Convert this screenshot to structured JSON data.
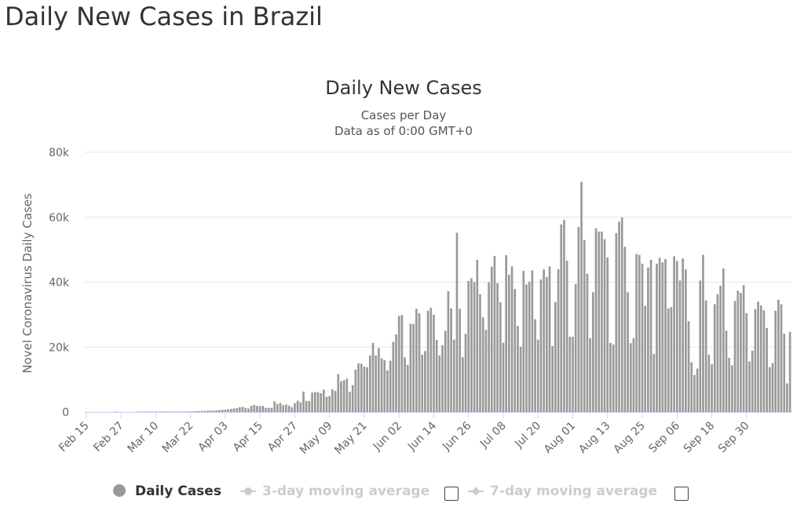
{
  "page": {
    "title": "Daily New Cases in Brazil"
  },
  "legend": {
    "items": [
      {
        "label": "Daily Cases",
        "active": true
      },
      {
        "label": "3-day moving average",
        "active": false
      },
      {
        "label": "7-day moving average",
        "active": false
      }
    ]
  },
  "colors": {
    "bar": "#999999",
    "grid": "#e6e6e6",
    "axis": "#ccd6eb",
    "inactive": "#cccccc"
  },
  "chart_data": {
    "type": "bar",
    "title": "Daily New Cases",
    "subtitle_lines": [
      "Cases per Day",
      "Data as of 0:00 GMT+0"
    ],
    "ylabel": "Novel Coronavirus Daily Cases",
    "xlabel": "",
    "ylim": [
      0,
      80000
    ],
    "yticks": [
      0,
      20000,
      40000,
      60000,
      80000
    ],
    "ytick_labels": [
      "0",
      "20k",
      "40k",
      "60k",
      "80k"
    ],
    "x_start": "Feb 15",
    "xtick_labels": [
      "Feb 15",
      "Feb 27",
      "Mar 10",
      "Mar 22",
      "Apr 03",
      "Apr 15",
      "Apr 27",
      "May 09",
      "May 21",
      "Jun 02",
      "Jun 14",
      "Jun 26",
      "Jul 08",
      "Jul 20",
      "Aug 01",
      "Aug 13",
      "Aug 25",
      "Sep 06",
      "Sep 18",
      "Sep 30"
    ],
    "xtick_interval_days": 12,
    "grid": true,
    "series": [
      {
        "name": "Daily Cases",
        "values": [
          0,
          0,
          0,
          0,
          0,
          0,
          0,
          0,
          0,
          0,
          1,
          0,
          0,
          0,
          0,
          0,
          0,
          0,
          1,
          3,
          5,
          5,
          6,
          8,
          5,
          15,
          13,
          12,
          25,
          17,
          60,
          79,
          89,
          98,
          146,
          175,
          162,
          218,
          286,
          297,
          362,
          354,
          402,
          418,
          500,
          520,
          640,
          700,
          760,
          850,
          970,
          1100,
          1200,
          1500,
          1600,
          1300,
          1100,
          1900,
          2200,
          1900,
          1800,
          1900,
          1300,
          1300,
          1300,
          3300,
          2500,
          2800,
          2100,
          2300,
          2000,
          1500,
          2700,
          3500,
          3000,
          6300,
          3400,
          3400,
          6000,
          6200,
          6100,
          5800,
          6900,
          4700,
          4900,
          7000,
          6500,
          11700,
          9500,
          9800,
          10300,
          6200,
          8300,
          13100,
          15000,
          14900,
          14000,
          13800,
          17400,
          21300,
          17400,
          19700,
          16600,
          16000,
          12800,
          15800,
          21600,
          23900,
          29600,
          29900,
          16800,
          14500,
          27200,
          27100,
          31800,
          30400,
          17700,
          18800,
          31200,
          32100,
          30000,
          22200,
          17400,
          20600,
          25000,
          37200,
          31900,
          22300,
          55200,
          31800,
          16900,
          24100,
          40400,
          41200,
          40000,
          46900,
          36300,
          29200,
          25300,
          40000,
          44800,
          48100,
          39700,
          33800,
          21300,
          48300,
          42300,
          44900,
          37900,
          26500,
          20100,
          43500,
          39300,
          40200,
          43600,
          28600,
          22300,
          40800,
          43900,
          41600,
          44900,
          20300,
          33900,
          44000,
          57800,
          59200,
          46600,
          23200,
          23200,
          39400,
          57000,
          70900,
          53000,
          42600,
          22700,
          36900,
          56600,
          55600,
          55600,
          53200,
          47600,
          21300,
          20800,
          55100,
          58600,
          60000,
          50900,
          36900,
          21200,
          22700,
          48700,
          48400,
          45700,
          32700,
          44500,
          46900,
          17900,
          45700,
          47500,
          46100,
          47100,
          31900,
          32300,
          48000,
          46500,
          40500,
          47300,
          43900,
          28000,
          15300,
          11400,
          13400,
          40500,
          48400,
          34400,
          17700,
          14700,
          33200,
          36300,
          38900,
          44200,
          25100,
          16700,
          14400,
          34200,
          37400,
          36700,
          39100,
          30400,
          15600,
          18900,
          31700,
          34000,
          32800,
          31300,
          25900,
          13800,
          15100,
          31200,
          34600,
          33200,
          24100,
          8800,
          24700
        ]
      }
    ]
  }
}
